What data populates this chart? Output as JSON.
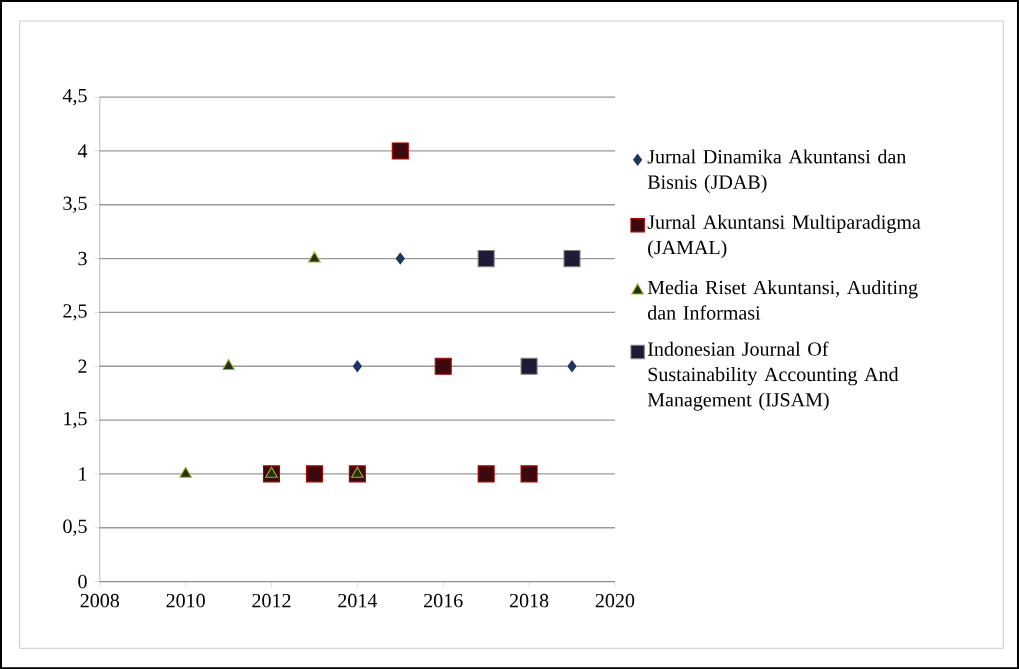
{
  "chart_data": {
    "type": "scatter",
    "xlim": [
      2008,
      2020
    ],
    "xticks": [
      2008,
      2010,
      2012,
      2014,
      2016,
      2018,
      2020
    ],
    "ylim": [
      0,
      4.5
    ],
    "yticks": [
      0,
      {
        "value": 0.5,
        "label": "0,5"
      },
      1,
      {
        "value": 1.5,
        "label": "1,5"
      },
      2,
      {
        "value": 2.5,
        "label": "2,5"
      },
      3,
      {
        "value": 3.5,
        "label": "3,5"
      },
      4,
      {
        "value": 4.5,
        "label": "4,5"
      }
    ],
    "grid": "y",
    "legend": "right",
    "series": [
      {
        "name": "Jurnal Dinamika Akuntansi dan Bisnis (JDAB)",
        "color": "#1f3560",
        "marker": "diamond",
        "x": [
          2014,
          2015,
          2019
        ],
        "values": [
          2,
          3,
          2
        ]
      },
      {
        "name": "Jurnal Akuntansi Multiparadigma (JAMAL)",
        "color": "#3a0a0e",
        "marker": "square",
        "x": [
          2012,
          2013,
          2014,
          2015,
          2016,
          2017,
          2018
        ],
        "values": [
          1,
          1,
          1,
          4,
          2,
          1,
          1
        ]
      },
      {
        "name": "Media Riset Akuntansi, Auditing dan Informasi",
        "color": "#1e3510",
        "marker": "triangle",
        "x": [
          2010,
          2011,
          2012,
          2013,
          2014
        ],
        "values": [
          1,
          2,
          1,
          3,
          1
        ]
      },
      {
        "name": "Indonesian Journal Of Sustainability Accounting And Management (IJSAM)",
        "color": "#1c1c38",
        "marker": "square",
        "x": [
          2017,
          2018,
          2019
        ],
        "values": [
          3,
          2,
          3
        ]
      }
    ]
  }
}
